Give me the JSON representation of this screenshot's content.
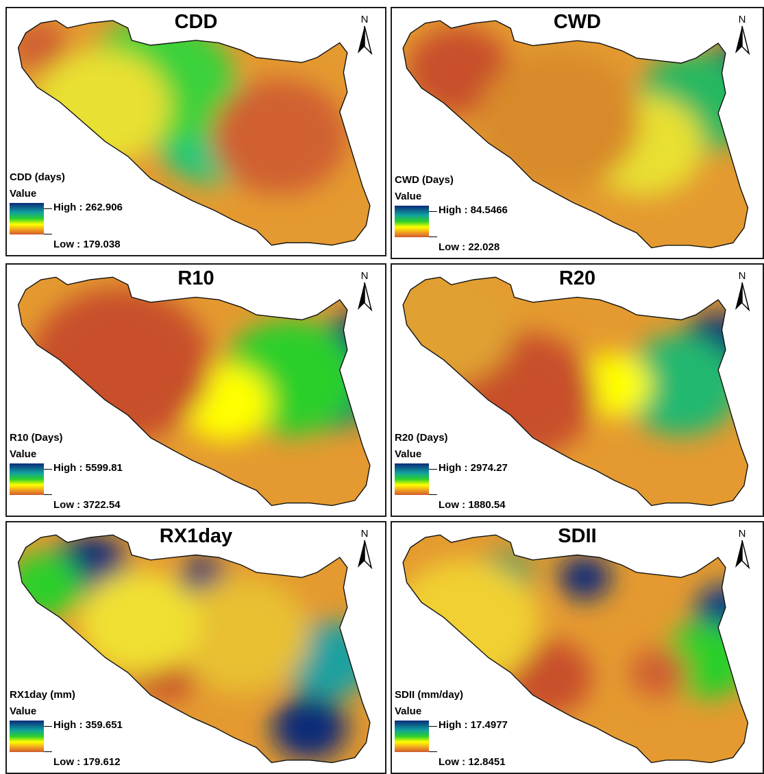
{
  "panels": [
    {
      "title": "CDD",
      "legend_title": "CDD (days)",
      "value_label": "Value",
      "high": "High : 262.906",
      "low": "Low : 179.038",
      "north": "N",
      "hotspots": [
        {
          "u": 0.5,
          "v": 0.4,
          "c": "#0a2a78",
          "r": 0.1
        },
        {
          "u": 0.55,
          "v": 0.5,
          "c": "#1ec87a",
          "r": 0.16
        },
        {
          "u": 0.4,
          "v": 0.3,
          "c": "#3ad23a",
          "r": 0.2
        },
        {
          "u": 0.25,
          "v": 0.4,
          "c": "#e8e030",
          "r": 0.18
        },
        {
          "u": 0.72,
          "v": 0.52,
          "c": "#d06030",
          "r": 0.18
        },
        {
          "u": 0.08,
          "v": 0.15,
          "c": "#d06030",
          "r": 0.08
        }
      ]
    },
    {
      "title": "CWD",
      "legend_title": "CWD (Days)",
      "value_label": "Value",
      "high": "High : 84.5466",
      "low": "Low : 22.028",
      "north": "N",
      "hotspots": [
        {
          "u": 0.92,
          "v": 0.22,
          "c": "#0a2a78",
          "r": 0.06
        },
        {
          "u": 0.82,
          "v": 0.38,
          "c": "#25b860",
          "r": 0.16
        },
        {
          "u": 0.68,
          "v": 0.55,
          "c": "#e8e030",
          "r": 0.16
        },
        {
          "u": 0.18,
          "v": 0.25,
          "c": "#c8502c",
          "r": 0.14
        },
        {
          "u": 0.45,
          "v": 0.45,
          "c": "#d88a2c",
          "r": 0.22
        }
      ]
    },
    {
      "title": "R10",
      "legend_title": "R10 (Days)",
      "value_label": "Value",
      "high": "High : 5599.81",
      "low": "Low : 3722.54",
      "north": "N",
      "hotspots": [
        {
          "u": 0.92,
          "v": 0.3,
          "c": "#0a2a78",
          "r": 0.08
        },
        {
          "u": 0.86,
          "v": 0.5,
          "c": "#14806a",
          "r": 0.12
        },
        {
          "u": 0.75,
          "v": 0.45,
          "c": "#2ccf2c",
          "r": 0.18
        },
        {
          "u": 0.58,
          "v": 0.55,
          "c": "#ffff00",
          "r": 0.12
        },
        {
          "u": 0.3,
          "v": 0.4,
          "c": "#c8502c",
          "r": 0.24
        }
      ]
    },
    {
      "title": "R20",
      "legend_title": "R20 (Days)",
      "value_label": "Value",
      "high": "High : 2974.27",
      "low": "Low : 1880.54",
      "north": "N",
      "hotspots": [
        {
          "u": 0.88,
          "v": 0.32,
          "c": "#0a2a78",
          "r": 0.1
        },
        {
          "u": 0.78,
          "v": 0.48,
          "c": "#20b870",
          "r": 0.16
        },
        {
          "u": 0.6,
          "v": 0.48,
          "c": "#ffff00",
          "r": 0.1
        },
        {
          "u": 0.35,
          "v": 0.52,
          "c": "#c8502c",
          "r": 0.2
        },
        {
          "u": 0.15,
          "v": 0.25,
          "c": "#e0a030",
          "r": 0.18
        }
      ]
    },
    {
      "title": "RX1day",
      "legend_title": "RX1day (mm)",
      "value_label": "Value",
      "high": "High : 359.651",
      "low": "Low : 179.612",
      "north": "N",
      "hotspots": [
        {
          "u": 0.22,
          "v": 0.18,
          "c": "#0a2a78",
          "r": 0.1
        },
        {
          "u": 0.52,
          "v": 0.22,
          "c": "#0a2a78",
          "r": 0.06
        },
        {
          "u": 0.8,
          "v": 0.82,
          "c": "#0a2a78",
          "r": 0.1
        },
        {
          "u": 0.1,
          "v": 0.25,
          "c": "#2ccf2c",
          "r": 0.1
        },
        {
          "u": 0.85,
          "v": 0.55,
          "c": "#1aa0a0",
          "r": 0.12
        },
        {
          "u": 0.42,
          "v": 0.58,
          "c": "#c8502c",
          "r": 0.1
        },
        {
          "u": 0.62,
          "v": 0.45,
          "c": "#e8c030",
          "r": 0.18
        },
        {
          "u": 0.35,
          "v": 0.4,
          "c": "#f0e030",
          "r": 0.16
        }
      ]
    },
    {
      "title": "SDII",
      "legend_title": "SDII (mm/day)",
      "value_label": "Value",
      "high": "High : 17.4977",
      "low": "Low : 12.8451",
      "north": "N",
      "hotspots": [
        {
          "u": 0.52,
          "v": 0.22,
          "c": "#0a2a78",
          "r": 0.07
        },
        {
          "u": 0.9,
          "v": 0.35,
          "c": "#0a3a88",
          "r": 0.08
        },
        {
          "u": 0.3,
          "v": 0.22,
          "c": "#1a9a6a",
          "r": 0.08
        },
        {
          "u": 0.85,
          "v": 0.55,
          "c": "#2ccf2c",
          "r": 0.12
        },
        {
          "u": 0.72,
          "v": 0.6,
          "c": "#d06030",
          "r": 0.08
        },
        {
          "u": 0.42,
          "v": 0.62,
          "c": "#c8502c",
          "r": 0.12
        },
        {
          "u": 0.2,
          "v": 0.4,
          "c": "#f0d030",
          "r": 0.2
        }
      ]
    }
  ]
}
